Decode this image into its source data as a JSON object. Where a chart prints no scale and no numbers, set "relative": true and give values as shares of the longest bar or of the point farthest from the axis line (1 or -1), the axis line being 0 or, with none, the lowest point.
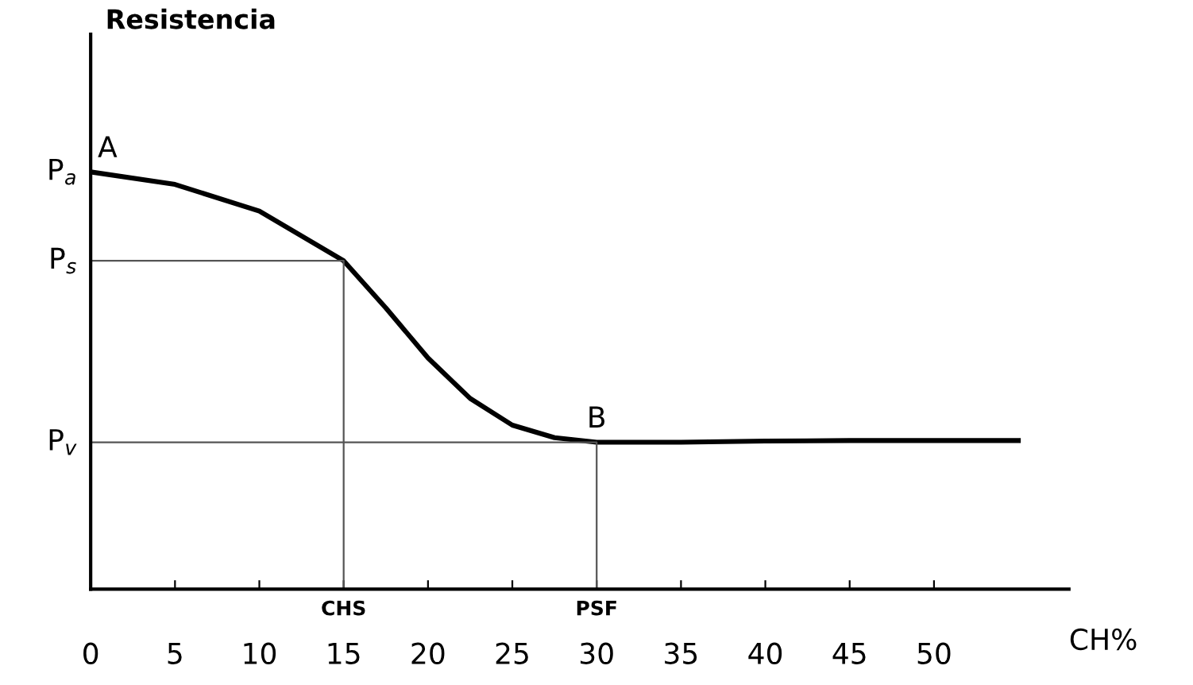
{
  "chart_data": {
    "type": "line",
    "relative": true,
    "xlabel": "CH%",
    "xlim": [
      0,
      58
    ],
    "xticks": [
      0,
      5,
      10,
      15,
      20,
      25,
      30,
      35,
      40,
      45,
      50
    ],
    "grid": false,
    "legend": false,
    "marker": "none",
    "line_style": "solid",
    "series": [
      {
        "color": "#000000",
        "x": [
          0,
          5,
          10,
          15,
          17.5,
          20,
          22.5,
          25,
          27.5,
          30,
          35,
          40,
          45,
          50,
          55
        ],
        "values": [
          1.0,
          0.97,
          0.906,
          0.787,
          0.674,
          0.554,
          0.457,
          0.393,
          0.363,
          0.352,
          0.352,
          0.355,
          0.356,
          0.356,
          0.356
        ]
      },
      {
        "color": "#555555",
        "x": [
          0,
          15,
          15
        ],
        "values": [
          0.787,
          0.787,
          0
        ]
      },
      {
        "color": "#555555",
        "x": [
          0,
          30,
          30
        ],
        "values": [
          0.352,
          0.352,
          0
        ]
      }
    ],
    "annotations": [
      "Resistencia",
      {
        "text": "A",
        "x": 1,
        "y": 1.0
      },
      {
        "text": "B",
        "x": 30,
        "y": 0.352
      },
      {
        "text": "P$_{a}$",
        "x": 0,
        "y": 1.0
      },
      {
        "text": "P$_{s}$",
        "x": 0,
        "y": 0.787
      },
      {
        "text": "P$_{v}$",
        "x": 0,
        "y": 0.352
      },
      {
        "text": "CHS",
        "x": 15,
        "y": 0
      },
      {
        "text": "PSF",
        "x": 30,
        "y": 0
      }
    ]
  }
}
